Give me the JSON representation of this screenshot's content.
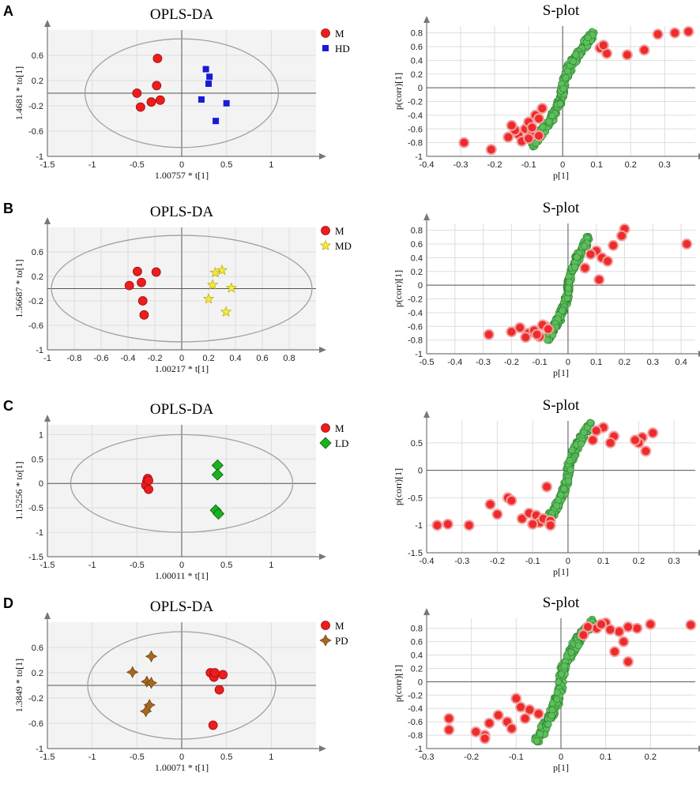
{
  "figure": {
    "panels": [
      {
        "letter": "A"
      },
      {
        "letter": "B"
      },
      {
        "letter": "C"
      },
      {
        "letter": "D"
      }
    ]
  },
  "colors": {
    "control": "#ee1c1c",
    "control_edge": "#9b0e0e",
    "HD": "#1a1ad6",
    "MD": "#f5ea3c",
    "MD_edge": "#b7a80a",
    "LD": "#19b21e",
    "LD_edge": "#0b5f0e",
    "PD": "#a8661e",
    "PD_edge": "#5e3508",
    "splot_green": "#5cbf5c",
    "splot_green_edge": "#2e7d2e",
    "splot_red": "#ee2b2b",
    "splot_red_ring": "#f2a0a0"
  },
  "chart_data": [
    {
      "panel": "A",
      "type": "scatter",
      "title": "OPLS-DA",
      "xlabel": "1.00757 * t[1]",
      "ylabel": "1.4681 * to[1]",
      "xlim": [
        -1.5,
        1.5
      ],
      "ylim": [
        -1,
        1
      ],
      "xticks": [
        -1.5,
        -1,
        -0.5,
        0,
        0.5,
        1
      ],
      "yticks": [
        -1,
        -0.6,
        -0.2,
        0.2,
        0.6
      ],
      "ytick_labels": [
        "-1",
        "-0.6",
        "-0.2",
        "0.2",
        "0.6"
      ],
      "ellipse": {
        "rx": 1.08,
        "ry": 0.86
      },
      "legend": [
        "M",
        "HD"
      ],
      "series": [
        {
          "name": "M",
          "marker": "circle",
          "x": [
            -0.27,
            -0.28,
            -0.5,
            -0.24,
            -0.34,
            -0.46
          ],
          "y": [
            0.55,
            0.12,
            0.0,
            -0.11,
            -0.14,
            -0.22
          ]
        },
        {
          "name": "HD",
          "marker": "square",
          "x": [
            0.27,
            0.31,
            0.3,
            0.22,
            0.5,
            0.38
          ],
          "y": [
            0.38,
            0.26,
            0.15,
            -0.1,
            -0.16,
            -0.44
          ]
        }
      ]
    },
    {
      "panel": "A",
      "type": "scatter",
      "title": "S-plot",
      "xlabel": "p[1]",
      "ylabel": "p(corr)[1]",
      "xlim": [
        -0.4,
        0.39
      ],
      "ylim": [
        -1,
        0.9
      ],
      "xticks": [
        -0.4,
        -0.3,
        -0.2,
        -0.1,
        0,
        0.1,
        0.2,
        0.3
      ],
      "yticks": [
        -1,
        -0.8,
        -0.6,
        -0.4,
        -0.2,
        0,
        0.2,
        0.4,
        0.6,
        0.8
      ],
      "ytick_labels": [
        "-1",
        "-0.8",
        "-0.6",
        "-0.4",
        "-0.2",
        "0",
        "0.2",
        "0.4",
        "0.6",
        "0.8"
      ],
      "red_points": {
        "x": [
          0.37,
          0.33,
          0.28,
          0.24,
          0.19,
          0.11,
          0.13,
          0.12,
          -0.29,
          -0.21,
          -0.16,
          -0.13,
          -0.11,
          -0.09,
          -0.07,
          -0.1,
          -0.14,
          -0.06,
          -0.12,
          -0.08,
          -0.15,
          -0.1,
          -0.07,
          -0.09
        ],
        "y": [
          0.82,
          0.8,
          0.78,
          0.55,
          0.48,
          0.58,
          0.5,
          0.62,
          -0.8,
          -0.9,
          -0.72,
          -0.68,
          -0.6,
          -0.66,
          -0.7,
          -0.5,
          -0.62,
          -0.3,
          -0.78,
          -0.4,
          -0.55,
          -0.74,
          -0.45,
          -0.58
        ]
      },
      "green_band": {
        "x0": -0.1,
        "x1": 0.1,
        "ymin": -0.82,
        "ymax": 0.78
      }
    },
    {
      "panel": "B",
      "type": "scatter",
      "title": "OPLS-DA",
      "xlabel": "1.00217 * t[1]",
      "ylabel": "1.56687 * to[1]",
      "xlim": [
        -1,
        1
      ],
      "ylim": [
        -1,
        1
      ],
      "xticks": [
        -1,
        -0.8,
        -0.6,
        -0.4,
        -0.2,
        0,
        0.2,
        0.4,
        0.6,
        0.8
      ],
      "yticks": [
        -1,
        -0.6,
        -0.2,
        0.2,
        0.6
      ],
      "ytick_labels": [
        "-1",
        "-0.6",
        "-0.2",
        "0.2",
        "0.6"
      ],
      "ellipse": {
        "rx": 0.97,
        "ry": 0.87
      },
      "legend": [
        "M",
        "MD"
      ],
      "series": [
        {
          "name": "M",
          "marker": "circle",
          "x": [
            -0.33,
            -0.19,
            -0.3,
            -0.39,
            -0.29,
            -0.28
          ],
          "y": [
            0.28,
            0.27,
            0.1,
            0.05,
            -0.2,
            -0.43
          ]
        },
        {
          "name": "MD",
          "marker": "star",
          "x": [
            0.3,
            0.25,
            0.23,
            0.37,
            0.2,
            0.33
          ],
          "y": [
            0.3,
            0.26,
            0.06,
            0.01,
            -0.17,
            -0.38
          ]
        }
      ]
    },
    {
      "panel": "B",
      "type": "scatter",
      "title": "S-plot",
      "xlabel": "p[1]",
      "ylabel": "p(corr)[1]",
      "xlim": [
        -0.5,
        0.45
      ],
      "ylim": [
        -1,
        0.9
      ],
      "xticks": [
        -0.5,
        -0.4,
        -0.3,
        -0.2,
        -0.1,
        0,
        0.1,
        0.2,
        0.3,
        0.4
      ],
      "yticks": [
        -1,
        -0.8,
        -0.6,
        -0.4,
        -0.2,
        0,
        0.2,
        0.4,
        0.6,
        0.8
      ],
      "ytick_labels": [
        "-1",
        "-0.8",
        "-0.6",
        "-0.4",
        "-0.2",
        "0",
        "0.2",
        "0.4",
        "0.6",
        "0.8"
      ],
      "red_points": {
        "x": [
          0.42,
          0.2,
          0.19,
          0.16,
          0.1,
          0.12,
          0.14,
          0.08,
          0.11,
          0.06,
          -0.28,
          -0.2,
          -0.17,
          -0.14,
          -0.12,
          -0.1,
          -0.08,
          -0.15,
          -0.11,
          -0.09,
          -0.07
        ],
        "y": [
          0.6,
          0.82,
          0.72,
          0.58,
          0.5,
          0.4,
          0.35,
          0.45,
          0.08,
          0.25,
          -0.72,
          -0.68,
          -0.62,
          -0.7,
          -0.66,
          -0.75,
          -0.6,
          -0.76,
          -0.72,
          -0.58,
          -0.64
        ]
      },
      "green_band": {
        "x0": -0.08,
        "x1": 0.08,
        "ymin": -0.78,
        "ymax": 0.68
      }
    },
    {
      "panel": "C",
      "type": "scatter",
      "title": "OPLS-DA",
      "xlabel": "1.00011 * t[1]",
      "ylabel": "1.15256 * to[1]",
      "xlim": [
        -1.5,
        1.5
      ],
      "ylim": [
        -1.5,
        1.2
      ],
      "xticks": [
        -1.5,
        -1,
        -0.5,
        0,
        0.5,
        1
      ],
      "yticks": [
        -1.5,
        -1,
        -0.5,
        0,
        0.5,
        1
      ],
      "ytick_labels": [
        "-1.5",
        "-1",
        "-0.5",
        "0",
        "0.5",
        "1"
      ],
      "ellipse": {
        "rx": 1.24,
        "ry": 1.0
      },
      "legend": [
        "M",
        "LD"
      ],
      "series": [
        {
          "name": "M",
          "marker": "circle",
          "x": [
            -0.38,
            -0.39,
            -0.4,
            -0.37,
            -0.37
          ],
          "y": [
            0.1,
            0.04,
            -0.04,
            -0.12,
            0.06
          ]
        },
        {
          "name": "LD",
          "marker": "diamond",
          "x": [
            0.4,
            0.4,
            0.38,
            0.41
          ],
          "y": [
            0.37,
            0.18,
            -0.55,
            -0.62
          ]
        }
      ]
    },
    {
      "panel": "C",
      "type": "scatter",
      "title": "S-plot",
      "xlabel": "p[1]",
      "ylabel": "p(corr)[1]",
      "xlim": [
        -0.4,
        0.36
      ],
      "ylim": [
        -1.5,
        0.9
      ],
      "xticks": [
        -0.4,
        -0.3,
        -0.2,
        -0.1,
        0,
        0.1,
        0.2,
        0.3
      ],
      "yticks": [
        -1.5,
        -1,
        -0.5,
        0,
        0.5
      ],
      "ytick_labels": [
        "-1.5",
        "-1",
        "-0.5",
        "0",
        "0.5"
      ],
      "red_points": {
        "x": [
          0.24,
          0.21,
          0.2,
          0.19,
          0.22,
          0.13,
          0.12,
          0.1,
          0.08,
          0.07,
          -0.37,
          -0.34,
          -0.28,
          -0.22,
          -0.2,
          -0.17,
          -0.16,
          -0.13,
          -0.11,
          -0.09,
          -0.08,
          -0.1,
          -0.07,
          -0.06,
          -0.05,
          -0.05
        ],
        "y": [
          0.68,
          0.6,
          0.5,
          0.55,
          0.35,
          0.62,
          0.5,
          0.78,
          0.72,
          0.55,
          -1.0,
          -0.98,
          -1.0,
          -0.62,
          -0.8,
          -0.5,
          -0.55,
          -0.88,
          -0.78,
          -0.82,
          -0.95,
          -0.98,
          -0.88,
          -0.3,
          -0.92,
          -1.0
        ]
      },
      "green_band": {
        "x0": -0.07,
        "x1": 0.07,
        "ymin": -0.95,
        "ymax": 0.82
      }
    },
    {
      "panel": "D",
      "type": "scatter",
      "title": "OPLS-DA",
      "xlabel": "1.00071 * t[1]",
      "ylabel": "1.3849 * to[1]",
      "xlim": [
        -1.5,
        1.5
      ],
      "ylim": [
        -1,
        1
      ],
      "xticks": [
        -1.5,
        -1,
        -0.5,
        0,
        0.5,
        1
      ],
      "yticks": [
        -1,
        -0.6,
        -0.2,
        0.2,
        0.6
      ],
      "ytick_labels": [
        "-1",
        "-0.6",
        "-0.2",
        "0.2",
        "0.6"
      ],
      "ellipse": {
        "rx": 1.05,
        "ry": 0.85
      },
      "legend": [
        "M",
        "PD"
      ],
      "series": [
        {
          "name": "M",
          "marker": "circle",
          "x": [
            0.32,
            0.36,
            0.46,
            0.42,
            0.37,
            0.35
          ],
          "y": [
            0.2,
            0.13,
            0.17,
            -0.07,
            0.2,
            -0.63
          ]
        },
        {
          "name": "PD",
          "marker": "cross4",
          "x": [
            -0.34,
            -0.55,
            -0.39,
            -0.34,
            -0.36,
            -0.4
          ],
          "y": [
            0.46,
            0.21,
            0.06,
            0.04,
            -0.31,
            -0.41
          ]
        }
      ]
    },
    {
      "panel": "D",
      "type": "scatter",
      "title": "S-plot",
      "xlabel": "p[1]",
      "ylabel": "p(corr)[1]",
      "xlim": [
        -0.3,
        0.3
      ],
      "ylim": [
        -1,
        0.95
      ],
      "xticks": [
        -0.3,
        -0.2,
        -0.1,
        0,
        0.1,
        0.2
      ],
      "yticks": [
        -1,
        -0.8,
        -0.6,
        -0.4,
        -0.2,
        0,
        0.2,
        0.4,
        0.6,
        0.8
      ],
      "ytick_labels": [
        "-1",
        "-0.8",
        "-0.6",
        "-0.4",
        "-0.2",
        "0",
        "0.2",
        "0.4",
        "0.6",
        "0.8"
      ],
      "red_points": {
        "x": [
          0.29,
          0.2,
          0.17,
          0.15,
          0.13,
          0.1,
          0.08,
          0.06,
          0.05,
          0.14,
          0.12,
          0.15,
          0.09,
          0.11,
          -0.25,
          -0.25,
          -0.19,
          -0.17,
          -0.16,
          -0.14,
          -0.12,
          -0.1,
          -0.09,
          -0.07,
          -0.05,
          -0.11,
          -0.17,
          -0.08
        ],
        "y": [
          0.85,
          0.86,
          0.8,
          0.82,
          0.75,
          0.88,
          0.8,
          0.82,
          0.7,
          0.6,
          0.45,
          0.3,
          0.86,
          0.78,
          -0.55,
          -0.72,
          -0.75,
          -0.8,
          -0.62,
          -0.5,
          -0.6,
          -0.25,
          -0.38,
          -0.42,
          -0.48,
          -0.7,
          -0.85,
          -0.55
        ]
      },
      "green_band": {
        "x0": -0.06,
        "x1": 0.08,
        "ymin": -0.88,
        "ymax": 0.9
      }
    }
  ]
}
